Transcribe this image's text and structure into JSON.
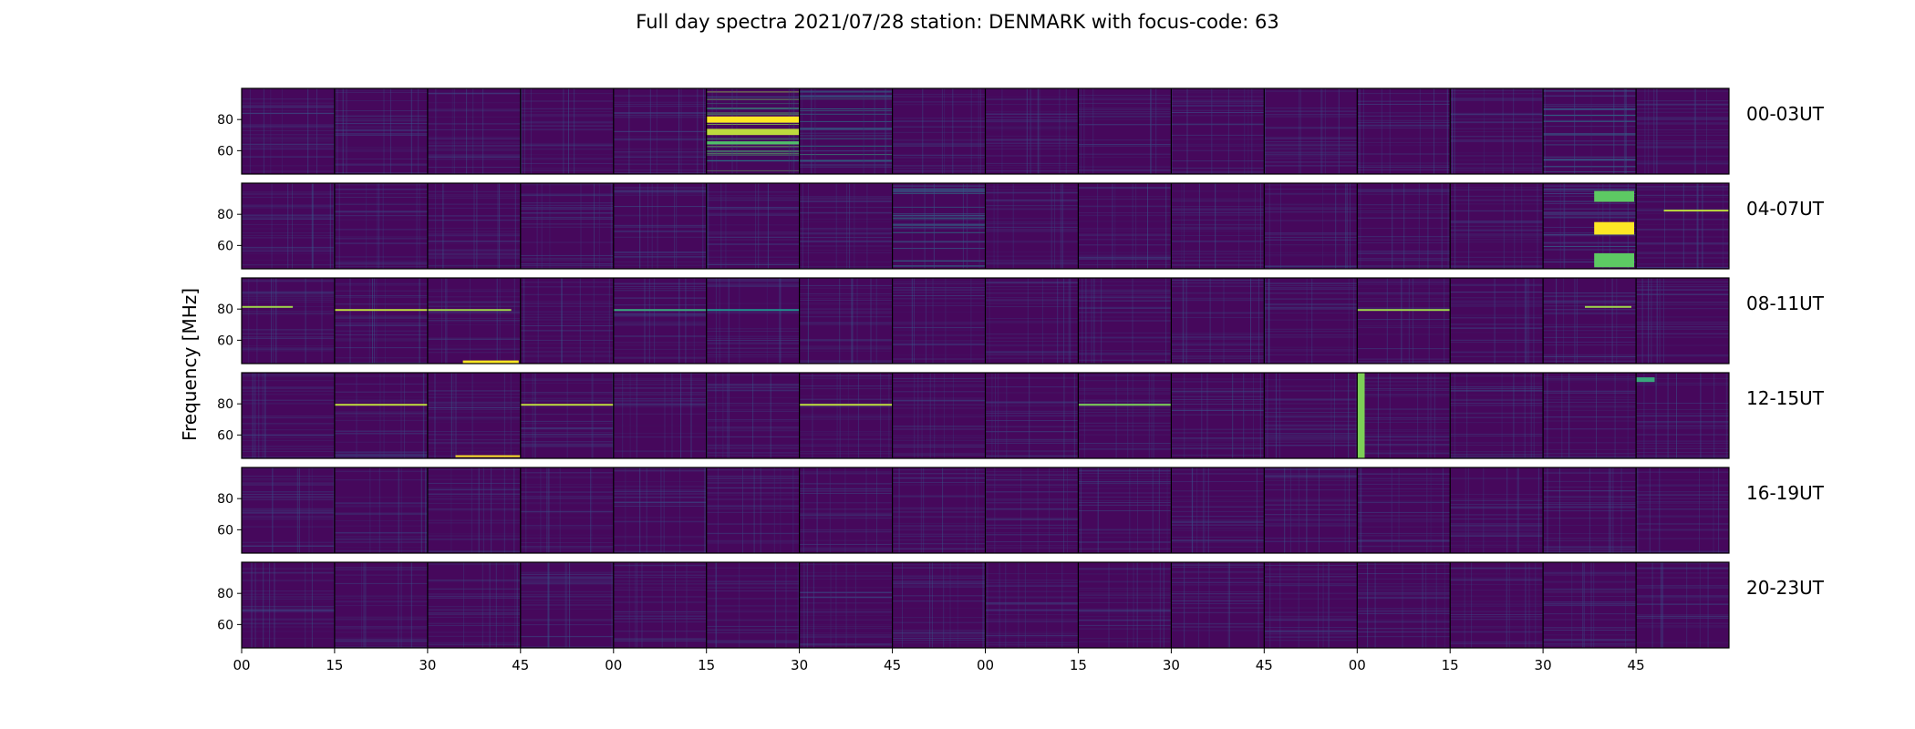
{
  "chart_data": {
    "type": "heatmap",
    "title": "Full day spectra 2021/07/28 station: DENMARK with focus-code: 63",
    "ylabel": "Frequency [MHz]",
    "xlabel": "",
    "ylim": [
      45,
      100
    ],
    "yticks": [
      60,
      80
    ],
    "xticks": [
      "00",
      "15",
      "30",
      "45",
      "00",
      "15",
      "30",
      "45",
      "00",
      "15",
      "30",
      "45",
      "00",
      "15",
      "30",
      "45"
    ],
    "rows": [
      "00-03UT",
      "04-07UT",
      "08-11UT",
      "12-15UT",
      "16-19UT",
      "20-23UT"
    ],
    "segments_per_row": 16,
    "segment_minutes": 15,
    "colormap": "viridis",
    "colors": {
      "background": "#46085c",
      "low": "#440154",
      "mid": "#21908d",
      "high": "#fde725"
    },
    "bright_segments": [
      {
        "row": 0,
        "segment": 5,
        "level": 0.55
      },
      {
        "row": 0,
        "segment": 6,
        "level": 0.35
      },
      {
        "row": 0,
        "segment": 14,
        "level": 0.25
      },
      {
        "row": 1,
        "segment": 7,
        "level": 0.3
      },
      {
        "row": 1,
        "segment": 14,
        "level": 0.2
      }
    ],
    "events": [
      {
        "row": 0,
        "segment": 5,
        "time_fraction": [
          0.0,
          1.0
        ],
        "freq_MHz": [
          78,
          82
        ],
        "level": 1.0
      },
      {
        "row": 0,
        "segment": 5,
        "time_fraction": [
          0.0,
          1.0
        ],
        "freq_MHz": [
          70,
          74
        ],
        "level": 0.9
      },
      {
        "row": 0,
        "segment": 5,
        "time_fraction": [
          0.0,
          1.0
        ],
        "freq_MHz": [
          64,
          66
        ],
        "level": 0.7
      },
      {
        "row": 1,
        "segment": 14,
        "time_fraction": [
          0.55,
          0.98
        ],
        "freq_MHz": [
          88,
          95
        ],
        "level": 0.75
      },
      {
        "row": 1,
        "segment": 14,
        "time_fraction": [
          0.55,
          0.98
        ],
        "freq_MHz": [
          67,
          75
        ],
        "level": 1.0
      },
      {
        "row": 1,
        "segment": 14,
        "time_fraction": [
          0.55,
          0.98
        ],
        "freq_MHz": [
          46,
          55
        ],
        "level": 0.75
      },
      {
        "row": 1,
        "segment": 15,
        "time_fraction": [
          0.3,
          1.0
        ],
        "freq_MHz": [
          82,
          83
        ],
        "level": 0.9
      },
      {
        "row": 2,
        "segment": 0,
        "time_fraction": [
          0.0,
          0.55
        ],
        "freq_MHz": [
          81,
          82
        ],
        "level": 0.85
      },
      {
        "row": 2,
        "segment": 1,
        "time_fraction": [
          0.0,
          1.0
        ],
        "freq_MHz": [
          79,
          80
        ],
        "level": 0.9
      },
      {
        "row": 2,
        "segment": 2,
        "time_fraction": [
          0.0,
          0.9
        ],
        "freq_MHz": [
          79,
          80
        ],
        "level": 0.85
      },
      {
        "row": 2,
        "segment": 2,
        "time_fraction": [
          0.38,
          0.98
        ],
        "freq_MHz": [
          45,
          47
        ],
        "level": 1.0
      },
      {
        "row": 2,
        "segment": 4,
        "time_fraction": [
          0.0,
          1.0
        ],
        "freq_MHz": [
          79,
          80
        ],
        "level": 0.6
      },
      {
        "row": 2,
        "segment": 5,
        "time_fraction": [
          0.0,
          1.0
        ],
        "freq_MHz": [
          79,
          80
        ],
        "level": 0.5
      },
      {
        "row": 2,
        "segment": 12,
        "time_fraction": [
          0.0,
          1.0
        ],
        "freq_MHz": [
          79,
          80
        ],
        "level": 0.85
      },
      {
        "row": 2,
        "segment": 14,
        "time_fraction": [
          0.45,
          0.95
        ],
        "freq_MHz": [
          81,
          82
        ],
        "level": 0.85
      },
      {
        "row": 3,
        "segment": 1,
        "time_fraction": [
          0.0,
          1.0
        ],
        "freq_MHz": [
          79,
          80
        ],
        "level": 0.9
      },
      {
        "row": 3,
        "segment": 2,
        "time_fraction": [
          0.3,
          1.0
        ],
        "freq_MHz": [
          46,
          47
        ],
        "level": 1.0
      },
      {
        "row": 3,
        "segment": 3,
        "time_fraction": [
          0.0,
          1.0
        ],
        "freq_MHz": [
          79,
          80
        ],
        "level": 0.9
      },
      {
        "row": 3,
        "segment": 6,
        "time_fraction": [
          0.0,
          1.0
        ],
        "freq_MHz": [
          79,
          80
        ],
        "level": 0.9
      },
      {
        "row": 3,
        "segment": 9,
        "time_fraction": [
          0.0,
          1.0
        ],
        "freq_MHz": [
          79,
          80
        ],
        "level": 0.8
      },
      {
        "row": 3,
        "segment": 12,
        "time_fraction": [
          0.0,
          0.08
        ],
        "freq_MHz": [
          45,
          100
        ],
        "level": 0.8
      },
      {
        "row": 3,
        "segment": 15,
        "time_fraction": [
          0.0,
          0.2
        ],
        "freq_MHz": [
          94,
          97
        ],
        "level": 0.6
      }
    ]
  }
}
